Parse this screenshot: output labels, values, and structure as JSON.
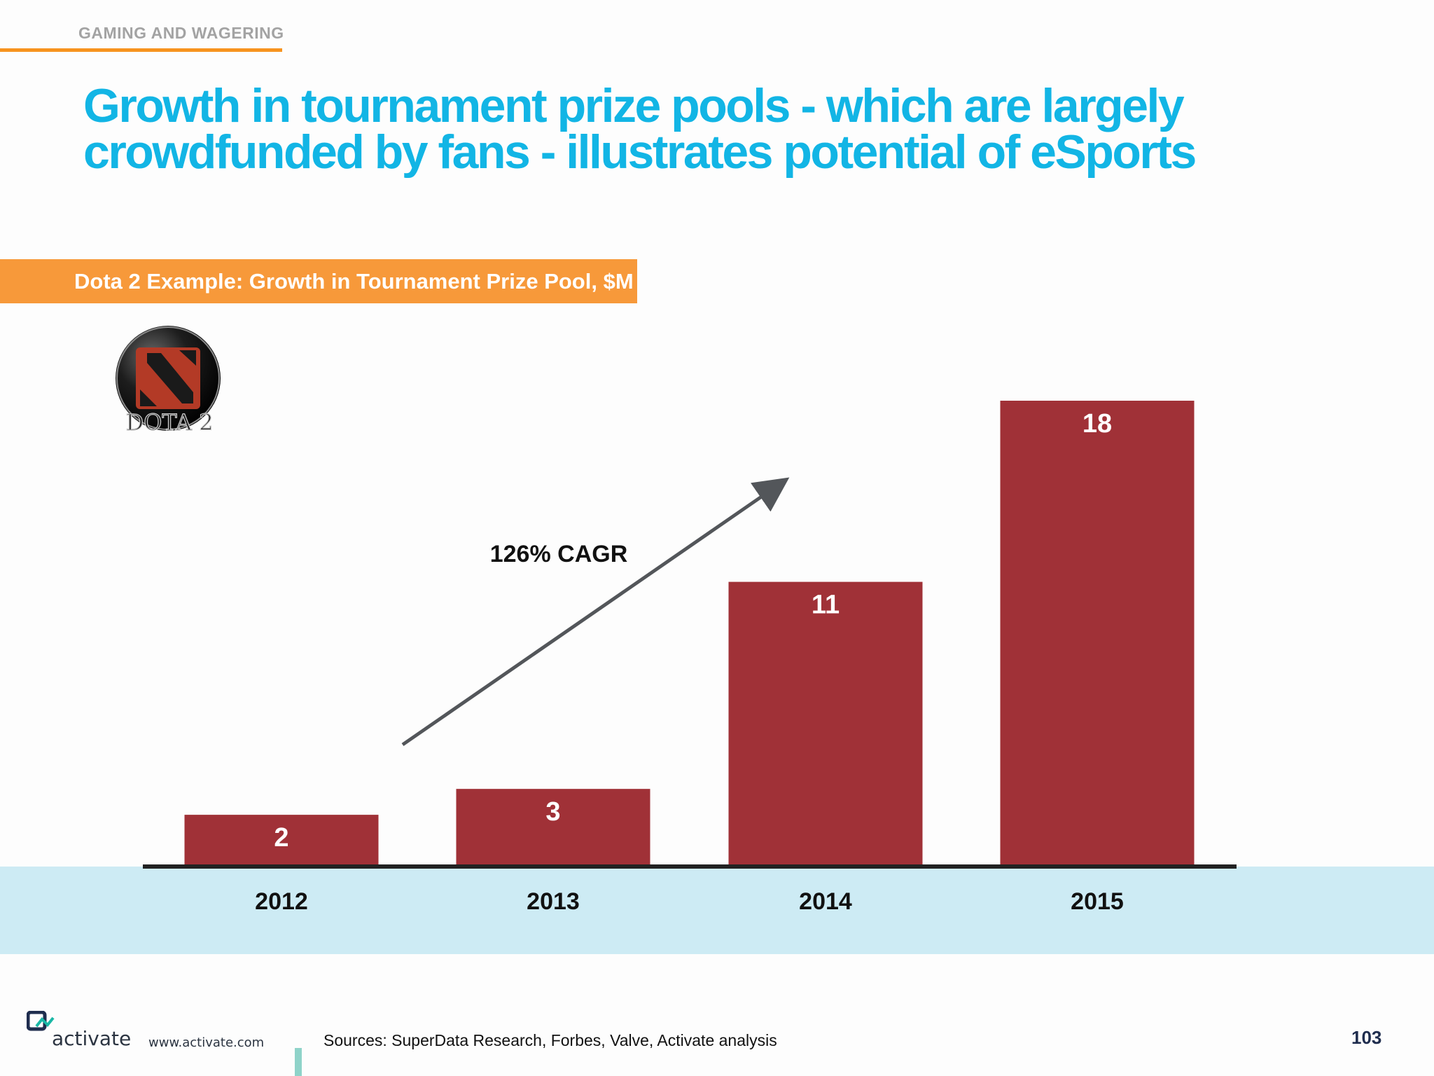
{
  "header": {
    "section_label": "GAMING AND WAGERING",
    "title": "Growth in tournament prize pools - which are largely crowdfunded by fans - illustrates potential of eSports"
  },
  "chart_banner": "Dota 2 Example: Growth in Tournament Prize Pool, $M",
  "logo": {
    "text": "DOTA 2"
  },
  "annotation": {
    "cagr_label": "126% CAGR"
  },
  "colors": {
    "accent_orange": "#f7931e",
    "title_blue": "#12b5e5",
    "bar_red": "#a03137",
    "axis_band": "#cdebf4"
  },
  "chart_data": {
    "type": "bar",
    "title": "Dota 2 Example: Growth in Tournament Prize Pool, $M",
    "categories": [
      "2012",
      "2013",
      "2014",
      "2015"
    ],
    "values": [
      2,
      3,
      11,
      18
    ],
    "data_labels": [
      "2",
      "3",
      "11",
      "18"
    ],
    "xlabel": "",
    "ylabel": "",
    "ylim": [
      0,
      18
    ],
    "grid": false,
    "legend": "none",
    "annotations": [
      "126% CAGR"
    ]
  },
  "footer": {
    "brand": "activate",
    "url": "www.activate.com",
    "sources": "Sources: SuperData Research, Forbes, Valve, Activate analysis",
    "page_number": "103"
  }
}
